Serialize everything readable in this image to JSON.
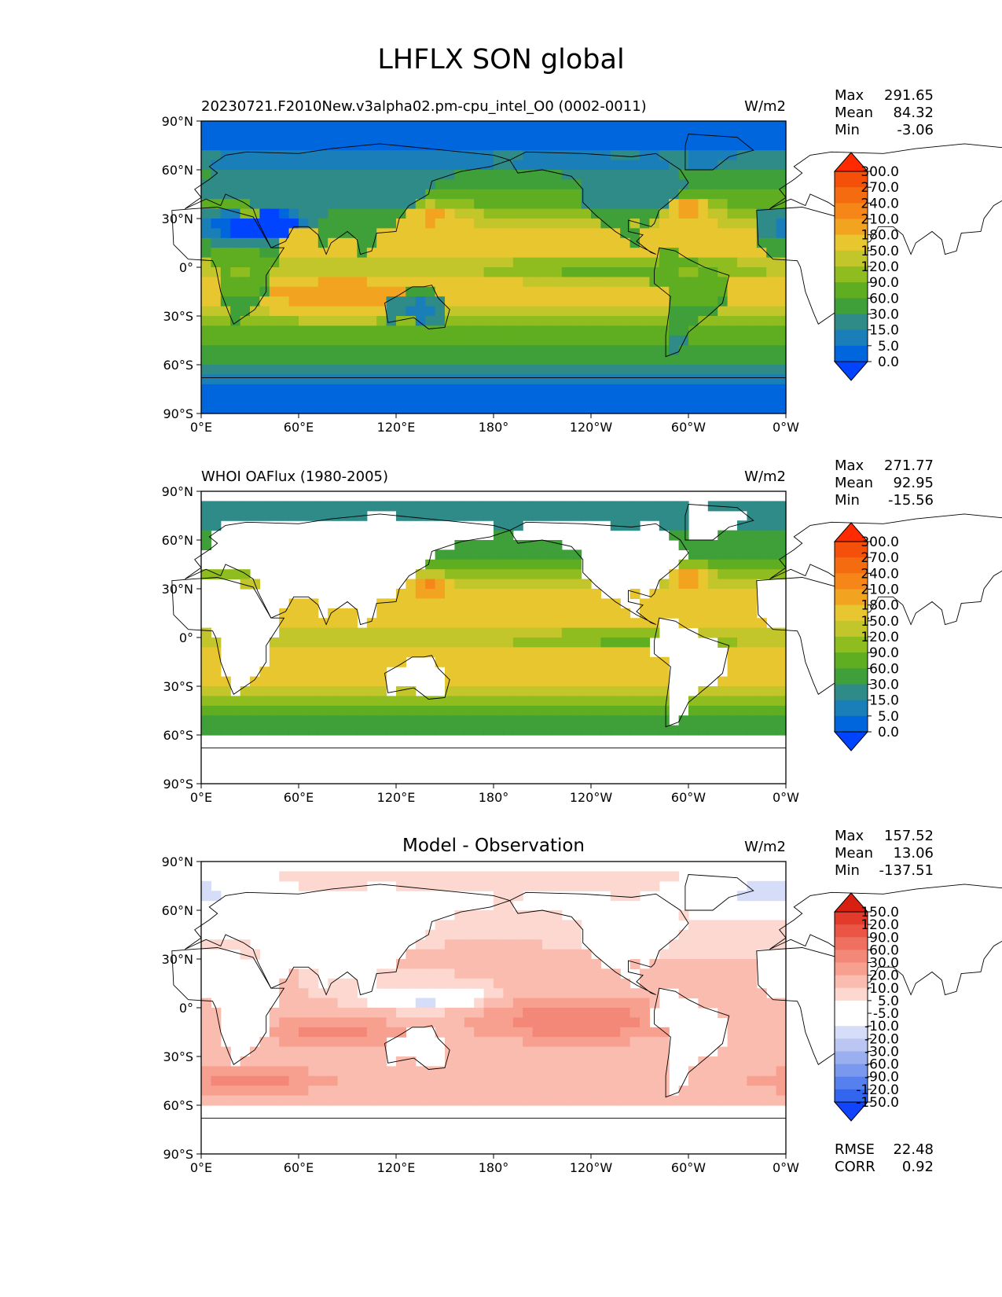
{
  "figure_title": "LHFLX SON global",
  "colors": {
    "abs_levels": [
      "#0044ff",
      "#0066dd",
      "#1a7fb8",
      "#2e8b87",
      "#3f9f38",
      "#5fae21",
      "#8fbd1f",
      "#c3c62a",
      "#e8c62f",
      "#f2a320",
      "#f58617",
      "#f56b10",
      "#f5500a",
      "#ff2a00"
    ],
    "diff_levels": [
      "#1144ff",
      "#3366ee",
      "#5580ee",
      "#7a99ee",
      "#9aaff0",
      "#bcc6f3",
      "#d6ddf8",
      "#ffffff",
      "#ffffff",
      "#fcd8d0",
      "#fbbcb0",
      "#f8a090",
      "#f48878",
      "#f07060",
      "#ea5545",
      "#e23a2b",
      "#d82010"
    ]
  },
  "panels": [
    {
      "name": "model",
      "left_title": "20230721.F2010New.v3alpha02.pm-cpu_intel_O0 (0002-0011)",
      "center_title": "",
      "units": "W/m2",
      "stats": {
        "max_label": "Max",
        "max": "291.65",
        "mean_label": "Mean",
        "mean": "84.32",
        "min_label": "Min",
        "min": "-3.06"
      },
      "colorbar_ticks": [
        "300.0",
        "270.0",
        "240.0",
        "210.0",
        "180.0",
        "150.0",
        "120.0",
        "90.0",
        "60.0",
        "30.0",
        "15.0",
        "5.0",
        "0.0"
      ]
    },
    {
      "name": "obs",
      "left_title": "WHOI OAFlux (1980-2005)",
      "center_title": "",
      "units": "W/m2",
      "stats": {
        "max_label": "Max",
        "max": "271.77",
        "mean_label": "Mean",
        "mean": "92.95",
        "min_label": "Min",
        "min": "-15.56"
      },
      "colorbar_ticks": [
        "300.0",
        "270.0",
        "240.0",
        "210.0",
        "180.0",
        "150.0",
        "120.0",
        "90.0",
        "60.0",
        "30.0",
        "15.0",
        "5.0",
        "0.0"
      ]
    },
    {
      "name": "diff",
      "left_title": "",
      "center_title": "Model - Observation",
      "units": "W/m2",
      "stats": {
        "max_label": "Max",
        "max": "157.52",
        "mean_label": "Mean",
        "mean": "13.06",
        "min_label": "Min",
        "min": "-137.51"
      },
      "colorbar_ticks": [
        "150.0",
        "120.0",
        "90.0",
        "60.0",
        "30.0",
        "20.0",
        "10.0",
        "5.0",
        "-5.0",
        "-10.0",
        "-20.0",
        "-30.0",
        "-60.0",
        "-90.0",
        "-120.0",
        "-150.0"
      ],
      "extra_stats": {
        "rmse_label": "RMSE",
        "rmse": "22.48",
        "corr_label": "CORR",
        "corr": "0.92"
      }
    }
  ],
  "chart_data": {
    "type": "heatmap",
    "title": "LHFLX SON global",
    "variable": "LHFLX",
    "season": "SON",
    "units": "W/m2",
    "x_ticks": [
      "0°E",
      "60°E",
      "120°E",
      "180°",
      "120°W",
      "60°W",
      "0°W"
    ],
    "y_ticks": [
      "90°N",
      "60°N",
      "30°N",
      "0°",
      "30°S",
      "60°S",
      "90°S"
    ],
    "xlim": [
      0,
      360
    ],
    "ylim": [
      -90,
      90
    ],
    "panels": [
      {
        "title": "20230721.F2010New.v3alpha02.pm-cpu_intel_O0 (0002-0011)",
        "max": 291.65,
        "mean": 84.32,
        "min": -3.06,
        "levels": [
          0,
          5,
          15,
          30,
          60,
          90,
          120,
          150,
          180,
          210,
          240,
          270,
          300
        ]
      },
      {
        "title": "WHOI OAFlux (1980-2005)",
        "max": 271.77,
        "mean": 92.95,
        "min": -15.56,
        "levels": [
          0,
          5,
          15,
          30,
          60,
          90,
          120,
          150,
          180,
          210,
          240,
          270,
          300
        ]
      },
      {
        "title": "Model - Observation",
        "max": 157.52,
        "mean": 13.06,
        "min": -137.51,
        "rmse": 22.48,
        "corr": 0.92,
        "levels": [
          -150,
          -120,
          -90,
          -60,
          -30,
          -20,
          -10,
          -5,
          5,
          10,
          20,
          30,
          60,
          90,
          120,
          150
        ]
      }
    ]
  }
}
